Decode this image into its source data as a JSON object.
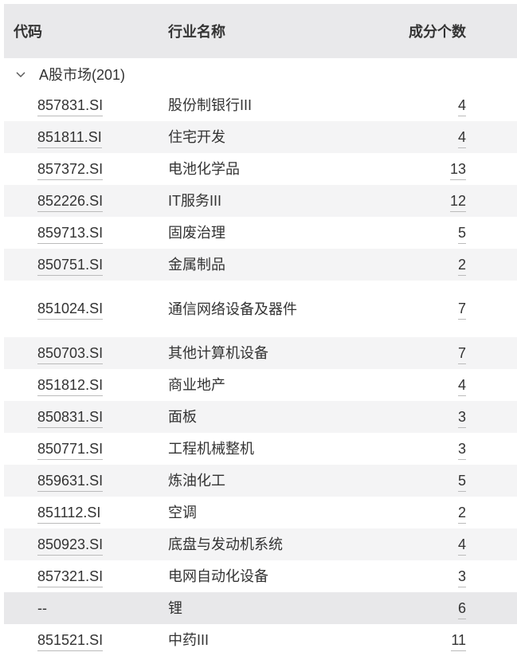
{
  "header": {
    "code": "代码",
    "name": "行业名称",
    "count": "成分个数"
  },
  "group": {
    "label": "A股市场(201)",
    "icon": "chevron-down-icon"
  },
  "rows": [
    {
      "code": "857831.SI",
      "name": "股份制银行III",
      "count": "4"
    },
    {
      "code": "851811.SI",
      "name": "住宅开发",
      "count": "4"
    },
    {
      "code": "857372.SI",
      "name": "电池化学品",
      "count": "13"
    },
    {
      "code": "852226.SI",
      "name": "IT服务III",
      "count": "12"
    },
    {
      "code": "859713.SI",
      "name": "固废治理",
      "count": "5"
    },
    {
      "code": "850751.SI",
      "name": "金属制品",
      "count": "2"
    },
    {
      "code": "851024.SI",
      "name": "通信网络设备及器件",
      "count": "7"
    },
    {
      "code": "850703.SI",
      "name": "其他计算机设备",
      "count": "7"
    },
    {
      "code": "851812.SI",
      "name": "商业地产",
      "count": "4"
    },
    {
      "code": "850831.SI",
      "name": "面板",
      "count": "3"
    },
    {
      "code": "850771.SI",
      "name": "工程机械整机",
      "count": "3"
    },
    {
      "code": "859631.SI",
      "name": "炼油化工",
      "count": "5"
    },
    {
      "code": "851112.SI",
      "name": "空调",
      "count": "2"
    },
    {
      "code": "850923.SI",
      "name": "底盘与发动机系统",
      "count": "4"
    },
    {
      "code": "857321.SI",
      "name": "电网自动化设备",
      "count": "3"
    },
    {
      "code": "--",
      "name": "锂",
      "count": "6"
    },
    {
      "code": "851521.SI",
      "name": "中药III",
      "count": "11"
    }
  ]
}
